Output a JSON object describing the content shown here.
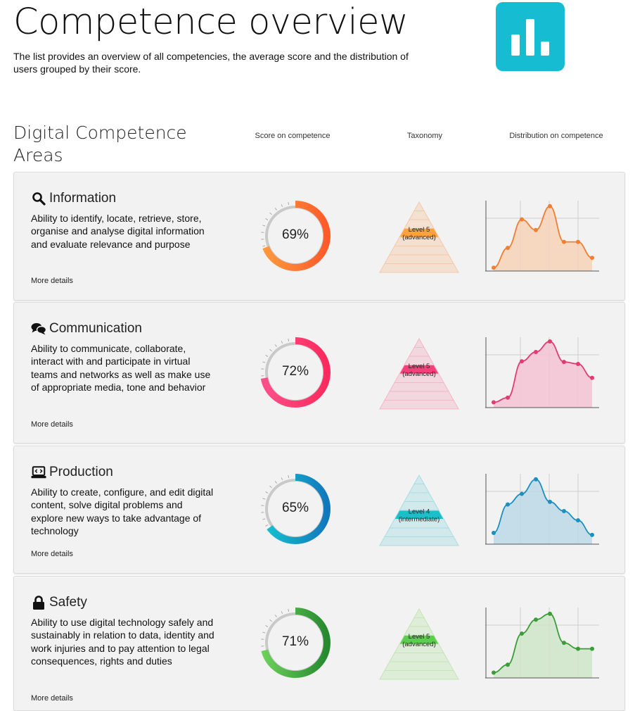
{
  "header": {
    "title": "Competence overview",
    "subtitle": "The list provides an overview of all competencies, the average score and the distribution of users grouped by their score."
  },
  "logo": {
    "icon": "bar-chart-icon",
    "color": "#16bdd2"
  },
  "section": {
    "title": "Digital Competence Areas",
    "col_score": "Score on competence",
    "col_taxonomy": "Taxonomy",
    "col_distribution": "Distribution on competence"
  },
  "cards": [
    {
      "icon": "search-icon",
      "title": "Information",
      "description": "Ability to identify, locate, retrieve, store, organise and analyse digital information and evaluate relevance and purpose",
      "more": "More details",
      "score_label": "69%",
      "score": 69,
      "level_line1": "Level 5",
      "level_line2": "(advanced)",
      "level": 5,
      "color_start": "#ff9a3c",
      "color_end": "#ff5a2a",
      "pyramid_color": "#f5c9a8",
      "band_color": "#ffa23c",
      "line_color": "#ef7f34",
      "fill_color": "#f7d2b7",
      "distribution": [
        0.05,
        0.35,
        0.78,
        0.62,
        0.98,
        0.44,
        0.44,
        0.2
      ]
    },
    {
      "icon": "comments-icon",
      "title": "Communication",
      "description": "Ability to communicate, collaborate, interact with and participate in virtual teams and networks as well as make use of appropriate media, tone and behavior",
      "more": "More details",
      "score_label": "72%",
      "score": 72,
      "level_line1": "Level 5",
      "level_line2": "(advanced)",
      "level": 5,
      "color_start": "#ff4f8a",
      "color_end": "#ff2a5c",
      "pyramid_color": "#f5b6c8",
      "band_color": "#f7407a",
      "line_color": "#e43a72",
      "fill_color": "#f5c3d3",
      "distribution": [
        0.08,
        0.15,
        0.7,
        0.84,
        1.0,
        0.69,
        0.66,
        0.45
      ]
    },
    {
      "icon": "laptop-code-icon",
      "title": "Production",
      "description": "Ability to create, configure, and edit digital content, solve digital problems and explore new ways to take advantage of technology",
      "more": "More details",
      "score_label": "65%",
      "score": 65,
      "level_line1": "Level 4",
      "level_line2": "(intermediate)",
      "level": 4,
      "color_start": "#17c3cf",
      "color_end": "#1178bd",
      "pyramid_color": "#a9dde3",
      "band_color": "#1abfc9",
      "line_color": "#1a8fc0",
      "fill_color": "#bcd9e6",
      "distribution": [
        0.17,
        0.6,
        0.76,
        0.98,
        0.64,
        0.5,
        0.36,
        0.14
      ]
    },
    {
      "icon": "lock-icon",
      "title": "Safety",
      "description": "Ability to use digital technology safely and sustainably in relation to data, identity and work injuries and to pay attention to legal consequences, rights and duties",
      "more": "More details",
      "score_label": "71%",
      "score": 71,
      "level_line1": "Level 5",
      "level_line2": "(advanced)",
      "level": 5,
      "color_start": "#6cd05a",
      "color_end": "#26892f",
      "pyramid_color": "#c3e6b6",
      "band_color": "#5ccd4f",
      "line_color": "#3d9c3a",
      "fill_color": "#cfe5c9",
      "distribution": [
        0.08,
        0.2,
        0.67,
        0.88,
        0.97,
        0.53,
        0.44,
        0.44
      ]
    }
  ]
}
